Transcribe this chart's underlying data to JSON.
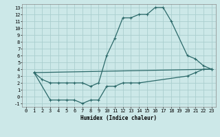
{
  "xlabel": "Humidex (Indice chaleur)",
  "bg_color": "#cce8e8",
  "grid_color": "#aacece",
  "line_color": "#2a6868",
  "xlim": [
    -0.5,
    23.5
  ],
  "ylim": [
    -1.5,
    13.5
  ],
  "xticks": [
    0,
    1,
    2,
    3,
    4,
    5,
    6,
    7,
    8,
    9,
    10,
    11,
    12,
    13,
    14,
    15,
    16,
    17,
    18,
    19,
    20,
    21,
    22,
    23
  ],
  "yticks": [
    -1,
    0,
    1,
    2,
    3,
    4,
    5,
    6,
    7,
    8,
    9,
    10,
    11,
    12,
    13
  ],
  "line1_x": [
    1,
    2,
    3,
    4,
    5,
    6,
    7,
    8,
    9,
    10,
    11,
    12,
    13,
    14,
    15,
    16,
    17,
    18,
    20,
    21,
    22,
    23
  ],
  "line1_y": [
    3.5,
    2.5,
    2.0,
    2.0,
    2.0,
    2.0,
    2.0,
    1.5,
    2.0,
    6.0,
    8.5,
    11.5,
    11.5,
    12.0,
    12.0,
    13.0,
    13.0,
    11.0,
    6.0,
    5.5,
    4.5,
    4.0
  ],
  "line2_x": [
    1,
    23
  ],
  "line2_y": [
    3.5,
    4.0
  ],
  "line3_x": [
    1,
    3,
    4,
    5,
    6,
    7,
    8,
    9,
    10,
    11,
    12,
    13,
    14,
    20,
    21,
    22,
    23
  ],
  "line3_y": [
    3.5,
    -0.5,
    -0.5,
    -0.5,
    -0.5,
    -1.0,
    -0.5,
    -0.5,
    1.5,
    1.5,
    2.0,
    2.0,
    2.0,
    3.0,
    3.5,
    4.0,
    4.0
  ],
  "xlabel_fontsize": 5.5,
  "tick_fontsize": 5.0,
  "linewidth": 0.9,
  "markersize": 2.5
}
